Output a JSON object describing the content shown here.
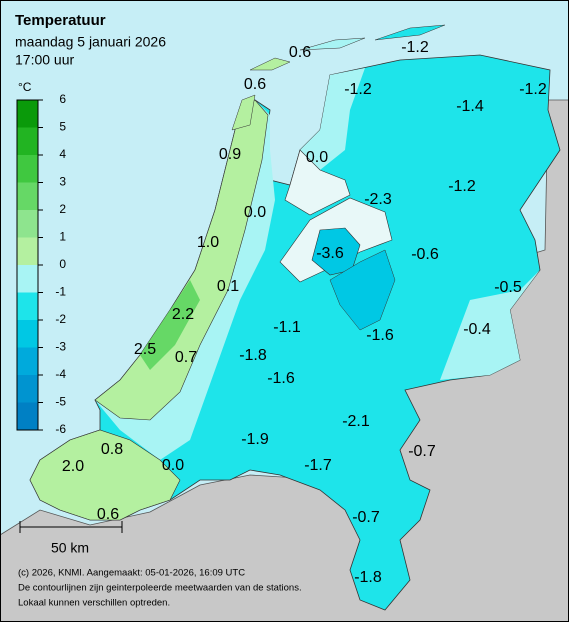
{
  "header": {
    "title": "Temperatuur",
    "date": "maandag 5 januari 2026",
    "time": "17:00 uur"
  },
  "legend": {
    "unit": "°C",
    "ticks": [
      6,
      5,
      4,
      3,
      2,
      1,
      0,
      -1,
      -2,
      -3,
      -4,
      -5,
      -6
    ],
    "colors": [
      "#0a9a0a",
      "#22b422",
      "#40c840",
      "#66d866",
      "#8ee48e",
      "#b4f0a0",
      "#a8f4f4",
      "#1ee4ea",
      "#00c8e4",
      "#00aadc",
      "#0094d0",
      "#0080c4"
    ]
  },
  "stations": [
    "0.6",
    "-1.2",
    "0.6",
    "-1.2",
    "-1.4",
    "-1.2",
    "0.9",
    "0.0",
    "-2.3",
    "-1.2",
    "0.0",
    "1.0",
    "-3.6",
    "-0.6",
    "-0.5",
    "0.1",
    "2.2",
    "-1.1",
    "-0.4",
    "-1.6",
    "2.5",
    "0.7",
    "-1.8",
    "-1.6",
    "-2.1",
    "-1.9",
    "-0.7",
    "0.8",
    "-1.7",
    "2.0",
    "0.0",
    "0.6",
    "-0.7",
    "-1.8"
  ],
  "scale_bar": "50 km",
  "footer": [
    "(c) 2026, KNMI. Aangemaakt: 05-01-2026, 16:09 UTC",
    "De contourlijnen zijn geinterpoleerde meetwaarden van de stations.",
    "Lokaal kunnen verschillen optreden."
  ]
}
